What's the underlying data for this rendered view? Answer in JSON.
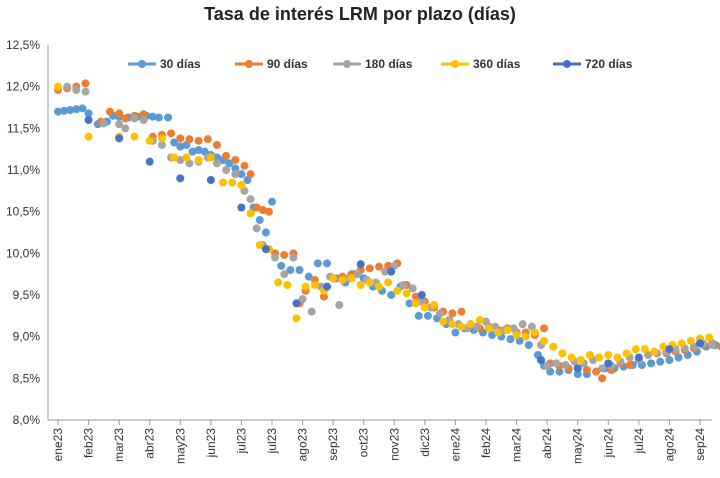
{
  "chart_data": {
    "type": "scatter",
    "title": "Tasa de interés LRM por plazo (días)",
    "xlabel": "",
    "ylabel": "",
    "categories": [
      "ene23",
      "feb23",
      "mar23",
      "abr23",
      "may23",
      "jun23",
      "jul23",
      "jul23",
      "ago23",
      "sep23",
      "oct23",
      "nov23",
      "dic23",
      "ene24",
      "feb24",
      "mar24",
      "abr24",
      "may24",
      "jun24",
      "jul24",
      "ago24",
      "sep24"
    ],
    "yticks": [
      "8,0%",
      "8,5%",
      "9,0%",
      "9,5%",
      "10,0%",
      "10,5%",
      "11,0%",
      "11,5%",
      "12,0%",
      "12,5%"
    ],
    "ylim": [
      8.0,
      12.5
    ],
    "grid": false,
    "legend_position": "top",
    "series": [
      {
        "name": "30 días",
        "color": "#5B9BD5",
        "points": [
          [
            0,
            11.7
          ],
          [
            0.2,
            11.71
          ],
          [
            0.4,
            11.72
          ],
          [
            0.6,
            11.73
          ],
          [
            0.8,
            11.74
          ],
          [
            1,
            11.68
          ],
          [
            1.3,
            11.55
          ],
          [
            1.6,
            11.58
          ],
          [
            1.8,
            11.65
          ],
          [
            2,
            11.64
          ],
          [
            2.3,
            11.63
          ],
          [
            2.6,
            11.64
          ],
          [
            2.9,
            11.65
          ],
          [
            3.1,
            11.64
          ],
          [
            3.3,
            11.63
          ],
          [
            3.6,
            11.63
          ],
          [
            3.8,
            11.33
          ],
          [
            4,
            11.28
          ],
          [
            4.2,
            11.3
          ],
          [
            4.4,
            11.22
          ],
          [
            4.6,
            11.24
          ],
          [
            4.8,
            11.22
          ],
          [
            5,
            11.18
          ],
          [
            5.2,
            11.15
          ],
          [
            5.4,
            11.12
          ],
          [
            5.6,
            11.08
          ],
          [
            5.8,
            11.02
          ],
          [
            6,
            10.95
          ],
          [
            6.2,
            10.88
          ],
          [
            6.4,
            10.55
          ],
          [
            6.6,
            10.4
          ],
          [
            6.8,
            10.25
          ],
          [
            7,
            10.62
          ],
          [
            7.3,
            9.85
          ],
          [
            7.6,
            9.8
          ],
          [
            7.9,
            9.8
          ],
          [
            8.2,
            9.72
          ],
          [
            8.5,
            9.88
          ],
          [
            8.8,
            9.88
          ],
          [
            9.1,
            9.7
          ],
          [
            9.4,
            9.65
          ],
          [
            9.7,
            9.75
          ],
          [
            10,
            9.7
          ],
          [
            10.3,
            9.6
          ],
          [
            10.6,
            9.55
          ],
          [
            10.9,
            9.5
          ],
          [
            11.2,
            9.6
          ],
          [
            11.5,
            9.4
          ],
          [
            11.8,
            9.25
          ],
          [
            12.1,
            9.25
          ],
          [
            12.4,
            9.22
          ],
          [
            12.7,
            9.15
          ],
          [
            13,
            9.05
          ],
          [
            13.3,
            9.1
          ],
          [
            13.6,
            9.08
          ],
          [
            13.9,
            9.05
          ],
          [
            14.2,
            9.02
          ],
          [
            14.5,
            9.0
          ],
          [
            14.8,
            8.97
          ],
          [
            15.1,
            8.95
          ],
          [
            15.4,
            8.9
          ],
          [
            15.7,
            8.78
          ],
          [
            15.9,
            8.65
          ],
          [
            16.1,
            8.58
          ],
          [
            16.4,
            8.58
          ],
          [
            16.7,
            8.6
          ],
          [
            17,
            8.55
          ],
          [
            17.3,
            8.55
          ],
          [
            17.6,
            8.58
          ],
          [
            17.9,
            8.62
          ],
          [
            18.2,
            8.62
          ],
          [
            18.5,
            8.64
          ],
          [
            18.8,
            8.66
          ],
          [
            19.1,
            8.66
          ],
          [
            19.4,
            8.68
          ],
          [
            19.7,
            8.7
          ],
          [
            20,
            8.72
          ],
          [
            20.3,
            8.75
          ],
          [
            20.6,
            8.78
          ],
          [
            20.9,
            8.82
          ],
          [
            21.2,
            8.88
          ],
          [
            21.5,
            8.9
          ],
          [
            21.8,
            8.9
          ]
        ]
      },
      {
        "name": "90 días",
        "color": "#ED7D31",
        "points": [
          [
            0,
            11.96
          ],
          [
            0.3,
            11.98
          ],
          [
            0.6,
            12.0
          ],
          [
            0.9,
            12.04
          ],
          [
            1.4,
            11.58
          ],
          [
            1.7,
            11.7
          ],
          [
            2,
            11.68
          ],
          [
            2.2,
            11.62
          ],
          [
            2.5,
            11.65
          ],
          [
            2.8,
            11.67
          ],
          [
            3.1,
            11.4
          ],
          [
            3.4,
            11.42
          ],
          [
            3.7,
            11.44
          ],
          [
            4,
            11.38
          ],
          [
            4.3,
            11.37
          ],
          [
            4.6,
            11.35
          ],
          [
            4.9,
            11.37
          ],
          [
            5.2,
            11.3
          ],
          [
            5.5,
            11.17
          ],
          [
            5.8,
            11.12
          ],
          [
            6.1,
            11.05
          ],
          [
            6.3,
            10.95
          ],
          [
            6.5,
            10.55
          ],
          [
            6.7,
            10.52
          ],
          [
            6.9,
            10.5
          ],
          [
            7.1,
            10.0
          ],
          [
            7.4,
            9.98
          ],
          [
            7.7,
            10.0
          ],
          [
            7.9,
            9.4
          ],
          [
            8.1,
            9.55
          ],
          [
            8.4,
            9.68
          ],
          [
            8.7,
            9.48
          ],
          [
            9,
            9.7
          ],
          [
            9.3,
            9.72
          ],
          [
            9.6,
            9.75
          ],
          [
            9.9,
            9.8
          ],
          [
            10.2,
            9.82
          ],
          [
            10.5,
            9.84
          ],
          [
            10.8,
            9.85
          ],
          [
            11.1,
            9.88
          ],
          [
            11.4,
            9.62
          ],
          [
            11.7,
            9.48
          ],
          [
            12,
            9.42
          ],
          [
            12.3,
            9.35
          ],
          [
            12.6,
            9.3
          ],
          [
            12.9,
            9.28
          ],
          [
            13.2,
            9.3
          ],
          [
            13.5,
            9.15
          ],
          [
            13.8,
            9.1
          ],
          [
            14.1,
            9.12
          ],
          [
            14.4,
            9.08
          ],
          [
            14.7,
            9.1
          ],
          [
            15,
            9.05
          ],
          [
            15.3,
            9.05
          ],
          [
            15.6,
            9.02
          ],
          [
            15.9,
            9.1
          ],
          [
            16.1,
            8.68
          ],
          [
            16.4,
            8.65
          ],
          [
            16.7,
            8.62
          ],
          [
            17,
            8.62
          ],
          [
            17.3,
            8.6
          ],
          [
            17.6,
            8.58
          ],
          [
            17.8,
            8.5
          ],
          [
            18.1,
            8.6
          ],
          [
            18.4,
            8.68
          ],
          [
            18.7,
            8.66
          ],
          [
            19,
            8.72
          ],
          [
            19.3,
            8.78
          ],
          [
            19.6,
            8.8
          ],
          [
            19.9,
            8.8
          ],
          [
            20.2,
            8.82
          ],
          [
            20.5,
            8.84
          ],
          [
            20.8,
            8.86
          ],
          [
            21.1,
            8.9
          ],
          [
            21.4,
            8.92
          ],
          [
            21.7,
            8.88
          ]
        ]
      },
      {
        "name": "180 días",
        "color": "#A5A5A5",
        "points": [
          [
            0.3,
            12.0
          ],
          [
            0.6,
            11.96
          ],
          [
            0.9,
            11.94
          ],
          [
            1.5,
            11.56
          ],
          [
            2,
            11.55
          ],
          [
            2.2,
            11.5
          ],
          [
            2.5,
            11.62
          ],
          [
            2.8,
            11.6
          ],
          [
            3.1,
            11.35
          ],
          [
            3.4,
            11.3
          ],
          [
            3.7,
            11.15
          ],
          [
            4,
            11.12
          ],
          [
            4.3,
            11.08
          ],
          [
            4.6,
            11.1
          ],
          [
            4.9,
            11.15
          ],
          [
            5.2,
            11.08
          ],
          [
            5.5,
            11.0
          ],
          [
            5.8,
            10.95
          ],
          [
            6.1,
            10.75
          ],
          [
            6.3,
            10.65
          ],
          [
            6.5,
            10.3
          ],
          [
            6.7,
            10.1
          ],
          [
            6.9,
            10.05
          ],
          [
            7.1,
            9.95
          ],
          [
            7.4,
            9.75
          ],
          [
            7.7,
            9.95
          ],
          [
            8,
            9.45
          ],
          [
            8.3,
            9.3
          ],
          [
            8.6,
            9.6
          ],
          [
            8.9,
            9.72
          ],
          [
            9.2,
            9.38
          ],
          [
            9.5,
            9.7
          ],
          [
            9.8,
            9.75
          ],
          [
            10.1,
            9.68
          ],
          [
            10.4,
            9.65
          ],
          [
            10.7,
            9.78
          ],
          [
            11,
            9.85
          ],
          [
            11.3,
            9.62
          ],
          [
            11.6,
            9.58
          ],
          [
            11.9,
            9.42
          ],
          [
            12.2,
            9.35
          ],
          [
            12.5,
            9.28
          ],
          [
            12.8,
            9.2
          ],
          [
            13.1,
            9.15
          ],
          [
            13.4,
            9.1
          ],
          [
            13.7,
            9.12
          ],
          [
            14,
            9.18
          ],
          [
            14.3,
            9.12
          ],
          [
            14.6,
            9.08
          ],
          [
            14.9,
            9.1
          ],
          [
            15.2,
            9.15
          ],
          [
            15.5,
            9.12
          ],
          [
            15.8,
            8.9
          ],
          [
            16,
            8.65
          ],
          [
            16.3,
            8.68
          ],
          [
            16.6,
            8.66
          ],
          [
            16.9,
            8.7
          ],
          [
            17.2,
            8.68
          ],
          [
            17.5,
            8.72
          ],
          [
            17.8,
            8.62
          ],
          [
            18.1,
            8.65
          ],
          [
            18.4,
            8.7
          ],
          [
            18.7,
            8.75
          ],
          [
            19,
            8.72
          ],
          [
            19.3,
            8.78
          ],
          [
            19.6,
            8.8
          ],
          [
            19.9,
            8.82
          ],
          [
            20.2,
            8.85
          ],
          [
            20.5,
            8.86
          ],
          [
            20.8,
            8.88
          ],
          [
            21.1,
            8.92
          ],
          [
            21.4,
            8.9
          ]
        ]
      },
      {
        "name": "360 días",
        "color": "#FFC000",
        "points": [
          [
            0,
            12.0
          ],
          [
            1,
            11.4
          ],
          [
            2,
            11.4
          ],
          [
            2.5,
            11.4
          ],
          [
            3,
            11.35
          ],
          [
            3.4,
            11.38
          ],
          [
            3.8,
            11.15
          ],
          [
            4.2,
            11.15
          ],
          [
            4.6,
            11.12
          ],
          [
            5,
            11.15
          ],
          [
            5.4,
            10.85
          ],
          [
            5.7,
            10.85
          ],
          [
            6,
            10.82
          ],
          [
            6.3,
            10.48
          ],
          [
            6.6,
            10.1
          ],
          [
            6.9,
            10.05
          ],
          [
            7.2,
            9.65
          ],
          [
            7.5,
            9.62
          ],
          [
            7.8,
            9.22
          ],
          [
            8.1,
            9.6
          ],
          [
            8.4,
            9.62
          ],
          [
            8.7,
            9.55
          ],
          [
            9,
            9.7
          ],
          [
            9.3,
            9.68
          ],
          [
            9.6,
            9.7
          ],
          [
            9.9,
            9.62
          ],
          [
            10.2,
            9.65
          ],
          [
            10.5,
            9.6
          ],
          [
            10.8,
            9.65
          ],
          [
            11.1,
            9.55
          ],
          [
            11.4,
            9.52
          ],
          [
            11.7,
            9.4
          ],
          [
            12,
            9.35
          ],
          [
            12.3,
            9.38
          ],
          [
            12.6,
            9.18
          ],
          [
            12.9,
            9.15
          ],
          [
            13.2,
            9.12
          ],
          [
            13.5,
            9.15
          ],
          [
            13.8,
            9.2
          ],
          [
            14.1,
            9.1
          ],
          [
            14.4,
            9.05
          ],
          [
            14.7,
            9.08
          ],
          [
            15,
            9.02
          ],
          [
            15.3,
            9.0
          ],
          [
            15.6,
            9.05
          ],
          [
            15.9,
            8.95
          ],
          [
            16.2,
            8.88
          ],
          [
            16.5,
            8.8
          ],
          [
            16.8,
            8.75
          ],
          [
            17.1,
            8.72
          ],
          [
            17.4,
            8.78
          ],
          [
            17.7,
            8.75
          ],
          [
            18,
            8.78
          ],
          [
            18.3,
            8.75
          ],
          [
            18.6,
            8.8
          ],
          [
            18.9,
            8.85
          ],
          [
            19.2,
            8.85
          ],
          [
            19.5,
            8.82
          ],
          [
            19.8,
            8.88
          ],
          [
            20.1,
            8.9
          ],
          [
            20.4,
            8.92
          ],
          [
            20.7,
            8.95
          ],
          [
            21,
            8.98
          ],
          [
            21.3,
            8.99
          ]
        ]
      },
      {
        "name": "720 días",
        "color": "#4472C4",
        "points": [
          [
            1,
            11.6
          ],
          [
            2,
            11.38
          ],
          [
            3,
            11.1
          ],
          [
            4,
            10.9
          ],
          [
            5,
            10.88
          ],
          [
            6,
            10.55
          ],
          [
            6.8,
            10.05
          ],
          [
            7.8,
            9.4
          ],
          [
            8.8,
            9.6
          ],
          [
            9.9,
            9.87
          ],
          [
            10.9,
            9.78
          ],
          [
            11.9,
            9.5
          ],
          [
            15.8,
            8.72
          ],
          [
            17,
            8.62
          ],
          [
            18,
            8.68
          ],
          [
            19,
            8.75
          ],
          [
            20,
            8.85
          ],
          [
            21,
            8.92
          ]
        ]
      }
    ]
  }
}
